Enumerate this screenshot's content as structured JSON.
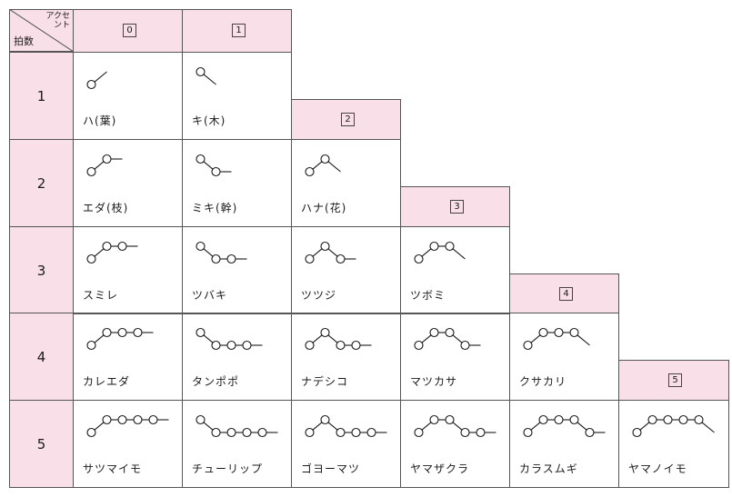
{
  "corner": {
    "top_line1": "アクセ",
    "top_line2": "ント",
    "bottom": "拍数"
  },
  "accent_headers": [
    "0",
    "1",
    "2",
    "3",
    "4",
    "5"
  ],
  "mora_labels": [
    "1",
    "2",
    "3",
    "4",
    "5"
  ],
  "rows": [
    [
      {
        "word": "ハ(葉)",
        "pattern": "LH"
      },
      {
        "word": "キ(木)",
        "pattern": "HL"
      }
    ],
    [
      {
        "word": "エダ(枝)",
        "pattern": "LHH"
      },
      {
        "word": "ミキ(幹)",
        "pattern": "HLL"
      },
      {
        "word": "ハナ(花)",
        "pattern": "LHL"
      }
    ],
    [
      {
        "word": "スミレ",
        "pattern": "LHHH"
      },
      {
        "word": "ツバキ",
        "pattern": "HLLL"
      },
      {
        "word": "ツツジ",
        "pattern": "LHLL"
      },
      {
        "word": "ツボミ",
        "pattern": "LHHL"
      }
    ],
    [
      {
        "word": "カレエダ",
        "pattern": "LHHHH"
      },
      {
        "word": "タンポポ",
        "pattern": "HLLLL"
      },
      {
        "word": "ナデシコ",
        "pattern": "LHLLL"
      },
      {
        "word": "マツカサ",
        "pattern": "LHHLL"
      },
      {
        "word": "クサカリ",
        "pattern": "LHHHL"
      }
    ],
    [
      {
        "word": "サツマイモ",
        "pattern": "LHHHHH"
      },
      {
        "word": "チューリップ",
        "pattern": "HLLLLL"
      },
      {
        "word": "ゴヨーマツ",
        "pattern": "LHLLLL"
      },
      {
        "word": "ヤマザクラ",
        "pattern": "LHHLLL"
      },
      {
        "word": "カラスムギ",
        "pattern": "LHHHLL"
      },
      {
        "word": "ヤマノイモ",
        "pattern": "LHHHHL"
      }
    ]
  ]
}
